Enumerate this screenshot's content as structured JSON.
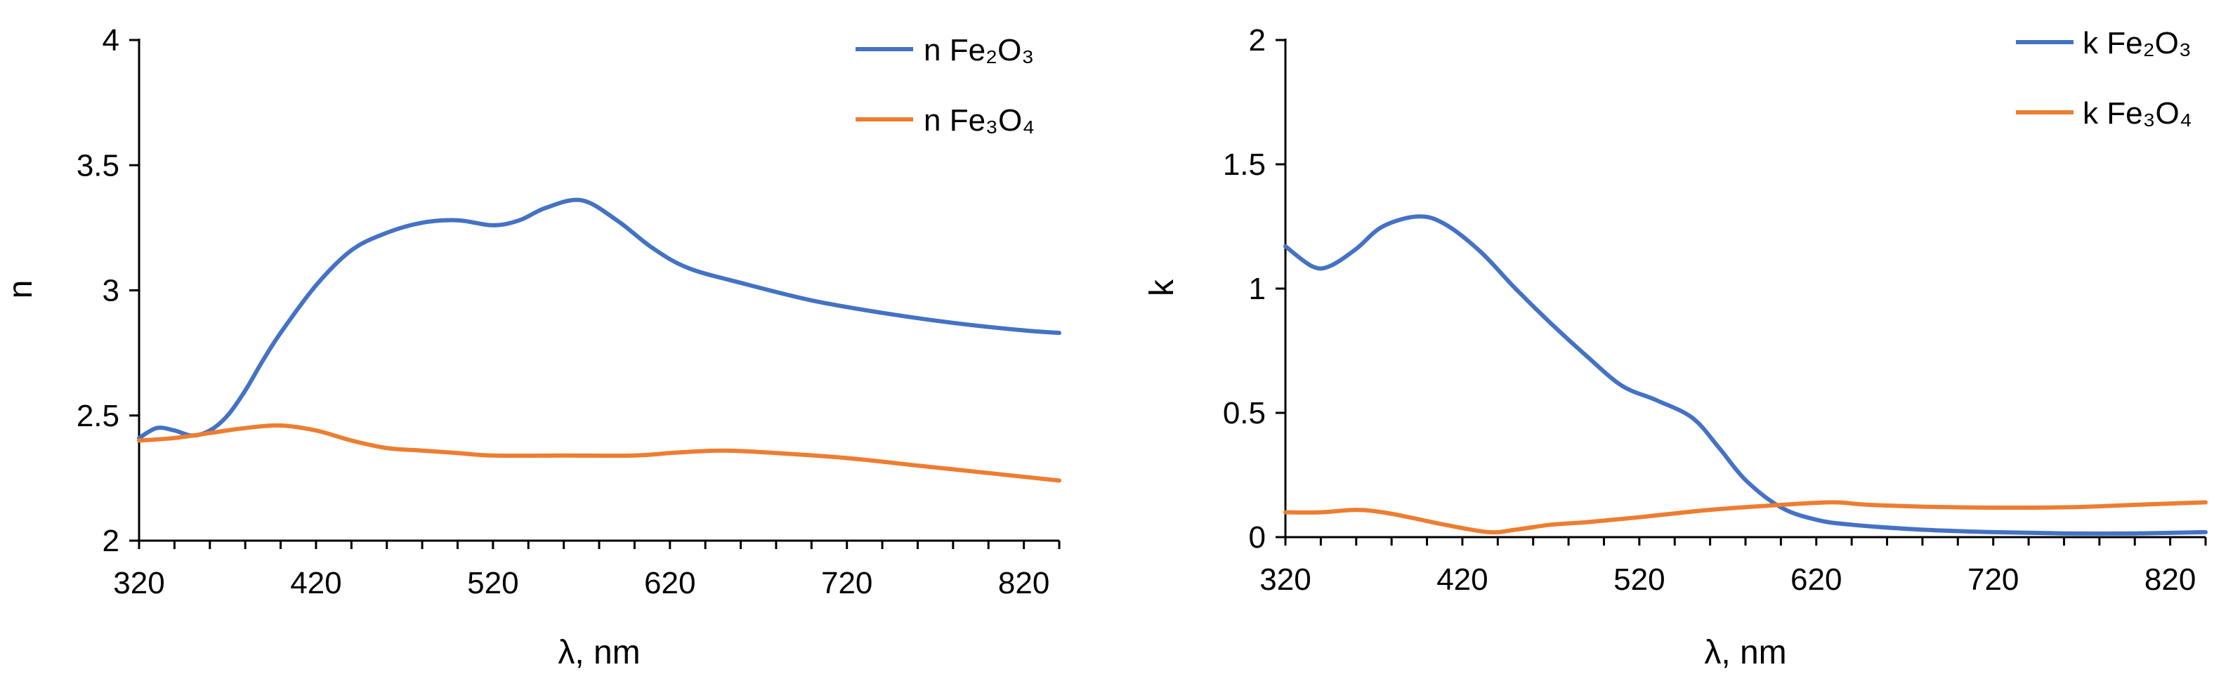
{
  "chart_data": [
    {
      "type": "line",
      "xlabel": "λ, nm",
      "ylabel": "n",
      "xlim": [
        320,
        840
      ],
      "ylim": [
        2,
        4
      ],
      "xticks": [
        320,
        420,
        520,
        620,
        720,
        820
      ],
      "yticks": [
        "2",
        "2.5",
        "3",
        "3.5",
        "4"
      ],
      "legend_position": "top-right",
      "series": [
        {
          "name": "n Fe₂O₃",
          "color": "#4472C4",
          "x": [
            320,
            330,
            340,
            350,
            360,
            370,
            380,
            390,
            400,
            420,
            440,
            460,
            480,
            500,
            520,
            535,
            550,
            570,
            590,
            610,
            630,
            660,
            700,
            740,
            780,
            820,
            840
          ],
          "y": [
            2.41,
            2.45,
            2.44,
            2.42,
            2.44,
            2.5,
            2.6,
            2.72,
            2.83,
            3.02,
            3.16,
            3.23,
            3.27,
            3.28,
            3.26,
            3.28,
            3.33,
            3.36,
            3.28,
            3.17,
            3.09,
            3.03,
            2.96,
            2.91,
            2.87,
            2.84,
            2.83
          ]
        },
        {
          "name": "n Fe₃O₄",
          "color": "#ED7D31",
          "x": [
            320,
            340,
            360,
            380,
            400,
            420,
            440,
            460,
            480,
            500,
            520,
            560,
            600,
            620,
            650,
            680,
            720,
            760,
            800,
            840
          ],
          "y": [
            2.4,
            2.41,
            2.43,
            2.45,
            2.46,
            2.44,
            2.4,
            2.37,
            2.36,
            2.35,
            2.34,
            2.34,
            2.34,
            2.35,
            2.36,
            2.35,
            2.33,
            2.3,
            2.27,
            2.24
          ]
        }
      ]
    },
    {
      "type": "line",
      "xlabel": "λ, nm",
      "ylabel": "k",
      "xlim": [
        320,
        840
      ],
      "ylim": [
        0,
        2
      ],
      "xticks": [
        320,
        420,
        520,
        620,
        720,
        820
      ],
      "yticks": [
        "0",
        "0.5",
        "1",
        "1.5",
        "2"
      ],
      "legend_position": "top-right",
      "series": [
        {
          "name": "k Fe₂O₃",
          "color": "#4472C4",
          "x": [
            320,
            335,
            345,
            360,
            375,
            395,
            410,
            430,
            450,
            470,
            490,
            510,
            530,
            550,
            565,
            580,
            600,
            620,
            640,
            680,
            720,
            760,
            800,
            840
          ],
          "y": [
            1.17,
            1.09,
            1.09,
            1.16,
            1.25,
            1.29,
            1.26,
            1.15,
            1.0,
            0.86,
            0.73,
            0.61,
            0.55,
            0.48,
            0.36,
            0.23,
            0.12,
            0.07,
            0.05,
            0.03,
            0.02,
            0.015,
            0.015,
            0.02
          ]
        },
        {
          "name": "k Fe₃O₄",
          "color": "#ED7D31",
          "x": [
            320,
            340,
            360,
            375,
            390,
            410,
            435,
            450,
            470,
            490,
            520,
            560,
            600,
            630,
            650,
            700,
            760,
            800,
            840
          ],
          "y": [
            0.1,
            0.1,
            0.11,
            0.1,
            0.08,
            0.05,
            0.02,
            0.03,
            0.05,
            0.06,
            0.08,
            0.11,
            0.13,
            0.14,
            0.13,
            0.12,
            0.12,
            0.13,
            0.14
          ]
        }
      ]
    }
  ]
}
